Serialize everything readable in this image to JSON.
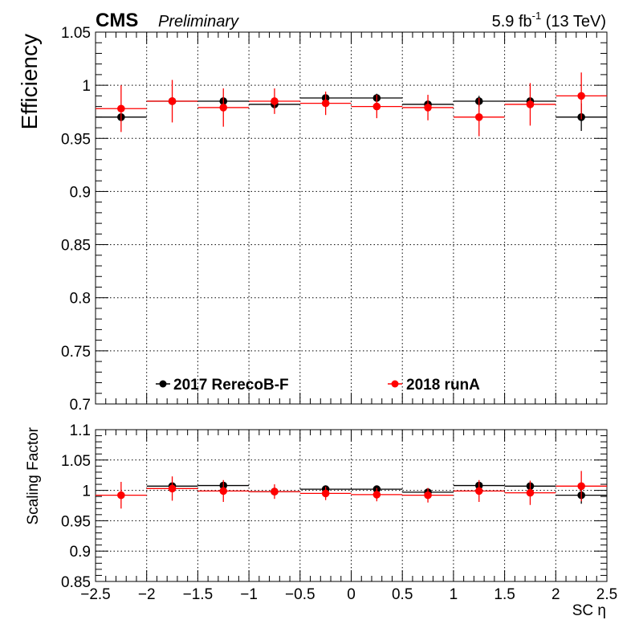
{
  "header": {
    "experiment": "CMS",
    "status": "Preliminary",
    "luminosity_pre": "5.9 fb",
    "luminosity_exp": "-1",
    "energy": " (13 TeV)"
  },
  "colors": {
    "series_2017": "#000000",
    "series_2018": "#ff0000"
  },
  "chart_data": [
    {
      "type": "scatter",
      "ylabel": "Efficiency",
      "ylim": [
        0.7,
        1.05
      ],
      "yticks": [
        "0.7",
        "0.75",
        "0.8",
        "0.85",
        "0.9",
        "0.95",
        "1",
        "1.05"
      ],
      "xlim": [
        -2.5,
        2.5
      ],
      "grid": true,
      "legend_placement": "bottom",
      "series": [
        {
          "name": "2017 RerecoB-F",
          "x": [
            -2.25,
            -1.75,
            -1.25,
            -0.75,
            -0.25,
            0.25,
            0.75,
            1.25,
            1.75,
            2.25
          ],
          "values": [
            0.97,
            0.985,
            0.985,
            0.982,
            0.988,
            0.988,
            0.982,
            0.985,
            0.985,
            0.97
          ],
          "errors": [
            0.0,
            0.0,
            0.004,
            0.003,
            0.004,
            0.004,
            0.003,
            0.005,
            0.004,
            0.013
          ]
        },
        {
          "name": "2018 runA",
          "x": [
            -2.25,
            -1.75,
            -1.25,
            -0.75,
            -0.25,
            0.25,
            0.75,
            1.25,
            1.75,
            2.25
          ],
          "values": [
            0.978,
            0.985,
            0.979,
            0.985,
            0.983,
            0.98,
            0.979,
            0.97,
            0.982,
            0.99
          ],
          "errors": [
            0.022,
            0.02,
            0.018,
            0.012,
            0.011,
            0.011,
            0.012,
            0.018,
            0.02,
            0.022
          ]
        }
      ]
    },
    {
      "type": "scatter",
      "ylabel": "Scaling Factor",
      "xlabel": "SC η",
      "ylim": [
        0.85,
        1.1
      ],
      "yticks": [
        "0.85",
        "0.9",
        "0.95",
        "1",
        "1.05",
        "1.1"
      ],
      "xlim": [
        -2.5,
        2.5
      ],
      "xticks": [
        "−2.5",
        "−2",
        "−1.5",
        "−1",
        "−0.5",
        "0",
        "0.5",
        "1",
        "1.5",
        "2",
        "2.5"
      ],
      "grid": true,
      "series": [
        {
          "name": "2017 RerecoB-F",
          "x": [
            -1.75,
            -1.25,
            -0.75,
            -0.25,
            0.25,
            0.75,
            1.25,
            1.75,
            2.25
          ],
          "values": [
            1.007,
            1.008,
            0.998,
            1.002,
            1.002,
            0.997,
            1.008,
            1.007,
            0.992
          ],
          "errors": [
            0.004,
            0.006,
            0.003,
            0.004,
            0.004,
            0.004,
            0.006,
            0.005,
            0.014
          ]
        },
        {
          "name": "2018 runA",
          "x": [
            -2.25,
            -1.75,
            -1.25,
            -0.75,
            -0.25,
            0.25,
            0.75,
            1.25,
            1.75,
            2.25
          ],
          "values": [
            0.992,
            1.003,
            0.999,
            0.998,
            0.995,
            0.993,
            0.992,
            0.999,
            0.996,
            1.007
          ],
          "errors": [
            0.022,
            0.02,
            0.018,
            0.012,
            0.011,
            0.011,
            0.012,
            0.018,
            0.02,
            0.025
          ]
        }
      ]
    }
  ]
}
